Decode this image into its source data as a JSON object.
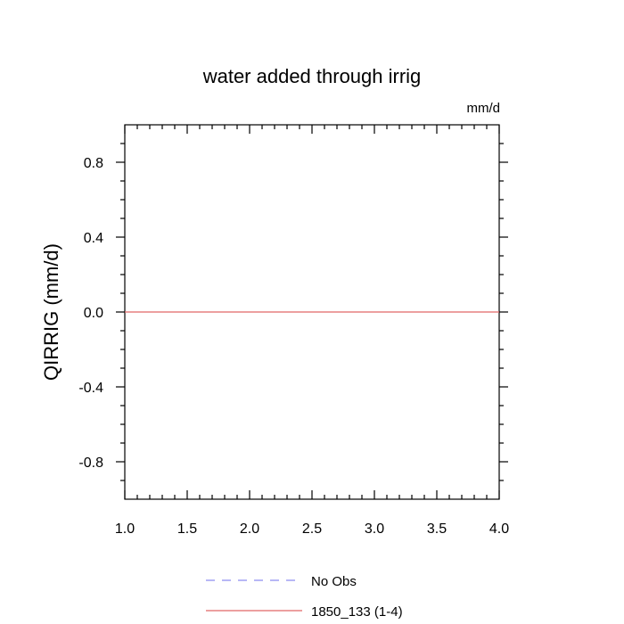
{
  "chart_data": {
    "type": "line",
    "title": "water added through irrig",
    "units_label": "mm/d",
    "ylabel": "QIRRIG  (mm/d)",
    "xlabel": "",
    "xlim": [
      1.0,
      4.0
    ],
    "ylim": [
      -1.0,
      1.0
    ],
    "x_ticks": [
      1.0,
      1.5,
      2.0,
      2.5,
      3.0,
      3.5,
      4.0
    ],
    "x_tick_labels": [
      "1.0",
      "1.5",
      "2.0",
      "2.5",
      "3.0",
      "3.5",
      "4.0"
    ],
    "y_ticks": [
      0.8,
      0.4,
      0.0,
      -0.4,
      -0.8
    ],
    "y_tick_labels": [
      "0.8",
      "0.4",
      "0.0",
      "-0.4",
      "-0.8"
    ],
    "grid": false,
    "legend_position": "bottom",
    "series": [
      {
        "name": "No Obs",
        "color": "#8c8cf0",
        "dash": "dashed",
        "x": [],
        "y": []
      },
      {
        "name": "1850_133 (1-4)",
        "color": "#e06666",
        "dash": "solid",
        "x": [
          1.0,
          4.0
        ],
        "y": [
          0.0,
          0.0
        ]
      }
    ]
  }
}
